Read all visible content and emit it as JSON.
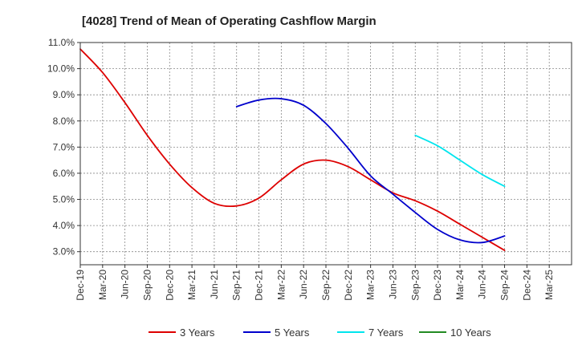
{
  "chart_data": {
    "type": "line",
    "title": "[4028]  Trend of Mean of Operating Cashflow Margin",
    "xlabel": "",
    "ylabel": "",
    "ylim": [
      2.5,
      11.0
    ],
    "yticks": [
      3.0,
      4.0,
      5.0,
      6.0,
      7.0,
      8.0,
      9.0,
      10.0,
      11.0
    ],
    "ytick_labels": [
      "3.0%",
      "4.0%",
      "5.0%",
      "6.0%",
      "7.0%",
      "8.0%",
      "9.0%",
      "10.0%",
      "11.0%"
    ],
    "categories": [
      "Dec-19",
      "Mar-20",
      "Jun-20",
      "Sep-20",
      "Dec-20",
      "Mar-21",
      "Jun-21",
      "Sep-21",
      "Dec-21",
      "Mar-22",
      "Jun-22",
      "Sep-22",
      "Dec-22",
      "Mar-23",
      "Jun-23",
      "Sep-23",
      "Dec-23",
      "Mar-24",
      "Jun-24",
      "Sep-24",
      "Dec-24",
      "Mar-25"
    ],
    "grid": true,
    "legend_position": "bottom",
    "series": [
      {
        "name": "3 Years",
        "color": "#dd0000",
        "values": [
          10.75,
          9.85,
          8.7,
          7.45,
          6.35,
          5.45,
          4.85,
          4.75,
          5.05,
          5.75,
          6.35,
          6.5,
          6.25,
          5.75,
          5.25,
          4.95,
          4.55,
          4.05,
          3.55,
          3.05,
          null,
          null
        ]
      },
      {
        "name": "5 Years",
        "color": "#0000cc",
        "values": [
          null,
          null,
          null,
          null,
          null,
          null,
          null,
          8.55,
          8.8,
          8.85,
          8.6,
          7.9,
          6.95,
          5.9,
          5.2,
          4.5,
          3.85,
          3.45,
          3.35,
          3.6,
          null,
          null
        ]
      },
      {
        "name": "7 Years",
        "color": "#00e5ee",
        "values": [
          null,
          null,
          null,
          null,
          null,
          null,
          null,
          null,
          null,
          null,
          null,
          null,
          null,
          null,
          null,
          7.45,
          7.05,
          6.5,
          5.95,
          5.5,
          null,
          null
        ]
      },
      {
        "name": "10 Years",
        "color": "#228b22",
        "values": [
          null,
          null,
          null,
          null,
          null,
          null,
          null,
          null,
          null,
          null,
          null,
          null,
          null,
          null,
          null,
          null,
          null,
          null,
          null,
          null,
          null,
          null
        ]
      }
    ]
  }
}
